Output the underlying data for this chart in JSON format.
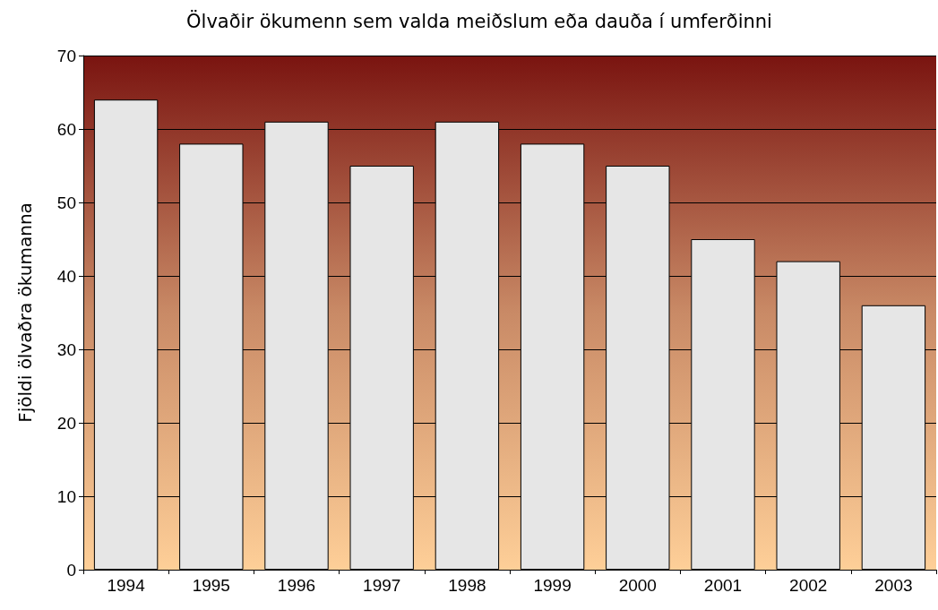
{
  "chart_data": {
    "type": "bar",
    "title": "Ölvaðir ökumenn sem valda meiðslum eða dauða í umferðinni",
    "ylabel": "Fjöldi ölvaðra ökumanna",
    "categories": [
      "1994",
      "1995",
      "1996",
      "1997",
      "1998",
      "1999",
      "2000",
      "2001",
      "2002",
      "2003"
    ],
    "values": [
      64,
      58,
      61,
      55,
      61,
      58,
      55,
      45,
      42,
      36
    ],
    "color": "#e6e6e6",
    "ylim": [
      0,
      70
    ],
    "yticks": [
      0,
      10,
      20,
      30,
      40,
      50,
      60,
      70
    ],
    "grid": "y"
  }
}
